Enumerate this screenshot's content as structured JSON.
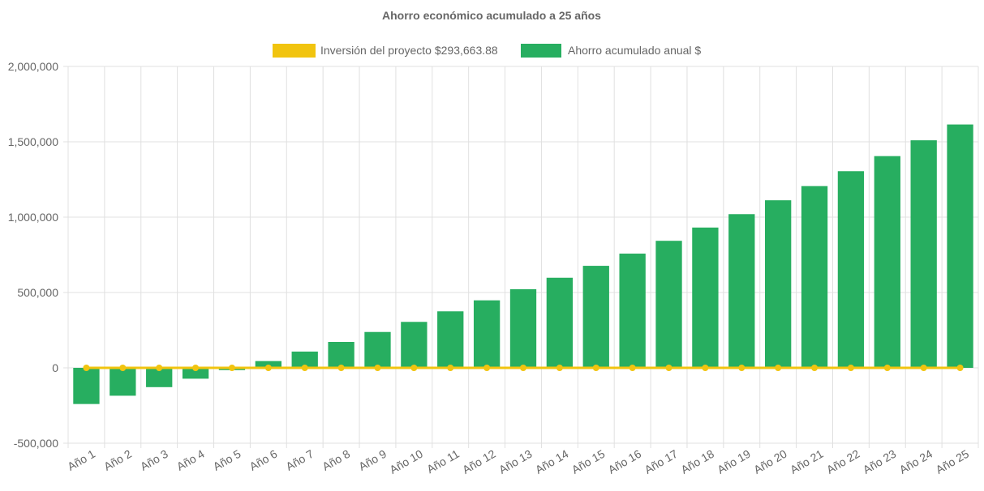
{
  "chart_data": {
    "type": "bar",
    "title": "Ahorro económico acumulado a 25 años",
    "categories": [
      "Año 1",
      "Año 2",
      "Año 3",
      "Año 4",
      "Año 5",
      "Año 6",
      "Año 7",
      "Año 8",
      "Año 9",
      "Año 10",
      "Año 11",
      "Año 12",
      "Año 13",
      "Año 14",
      "Año 15",
      "Año 16",
      "Año 17",
      "Año 18",
      "Año 19",
      "Año 20",
      "Año 21",
      "Año 22",
      "Año 23",
      "Año 24",
      "Año 25"
    ],
    "series": [
      {
        "name": "Inversión del proyecto $293,663.88",
        "type": "line",
        "color": "#f1c40f",
        "values": [
          0,
          0,
          0,
          0,
          0,
          0,
          0,
          0,
          0,
          0,
          0,
          0,
          0,
          0,
          0,
          0,
          0,
          0,
          0,
          0,
          0,
          0,
          0,
          0,
          0
        ]
      },
      {
        "name": "Ahorro acumulado anual $",
        "type": "bar",
        "color": "#27ae60",
        "values": [
          -240000,
          -185000,
          -128000,
          -72000,
          -15000,
          45000,
          108000,
          172000,
          238000,
          305000,
          375000,
          448000,
          522000,
          598000,
          677000,
          758000,
          843000,
          931000,
          1020000,
          1112000,
          1206000,
          1305000,
          1405000,
          1510000,
          1615000
        ]
      }
    ],
    "y_ticks": [
      "2,000,000",
      "1,500,000",
      "1,000,000",
      "500,000",
      "0",
      "-500,000"
    ],
    "ylim": [
      -500000,
      2000000
    ],
    "grid": true,
    "legend_position": "top"
  }
}
